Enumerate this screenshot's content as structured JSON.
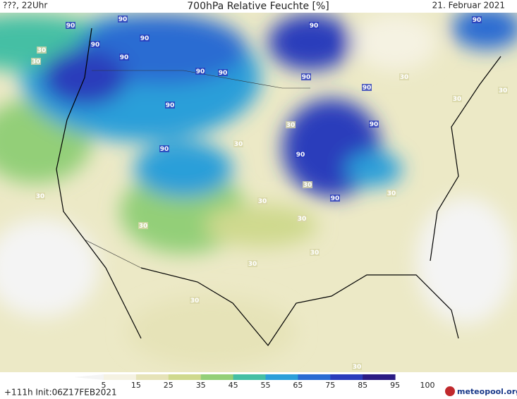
{
  "header": {
    "left": "???, 22Uhr",
    "title": "700hPa Relative Feuchte [%]",
    "date": "21. Februar 2021"
  },
  "colorbar": {
    "labels": [
      "5",
      "15",
      "25",
      "35",
      "45",
      "55",
      "65",
      "75",
      "85",
      "95",
      "100"
    ],
    "colors": [
      "#f4f4f4",
      "#f5f2e2",
      "#e6e3b8",
      "#cfd98e",
      "#93cf78",
      "#45bfa4",
      "#2c9fd9",
      "#2a6cd2",
      "#2a3cbb",
      "#2b1c84"
    ]
  },
  "contour_labels": [
    "90",
    "90",
    "90",
    "90",
    "90",
    "90",
    "90",
    "90",
    "90",
    "90",
    "90",
    "90",
    "90",
    "90",
    "90",
    "90",
    "30",
    "30",
    "30",
    "30",
    "30",
    "30",
    "30",
    "30",
    "30",
    "30",
    "30",
    "30",
    "30",
    "30",
    "30",
    "30",
    "30"
  ],
  "footer": {
    "run": "+111h Init:06Z17FEB2021",
    "logo": "meteopool.org"
  }
}
